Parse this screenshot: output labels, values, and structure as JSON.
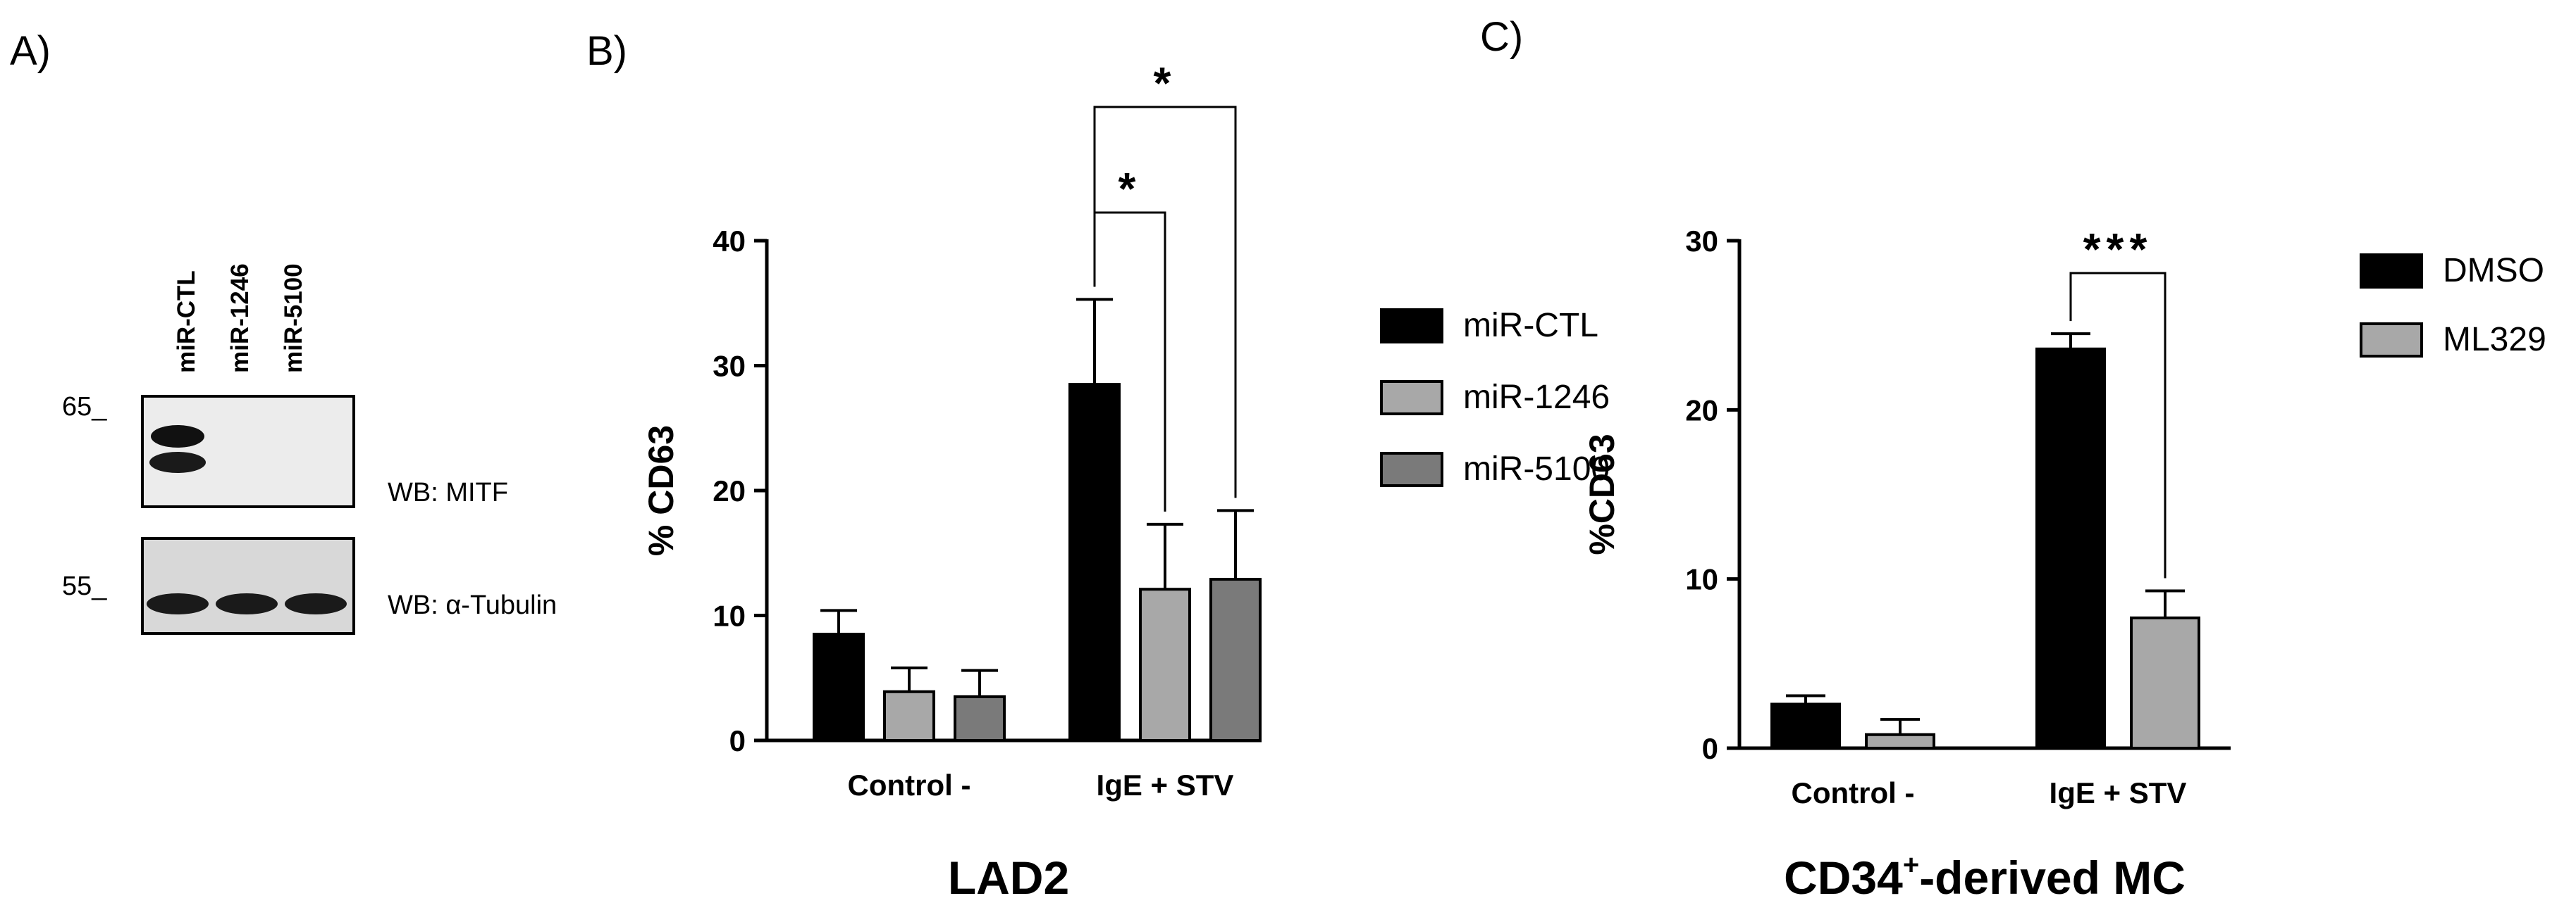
{
  "panels": {
    "a": {
      "label": "A)",
      "lanes": [
        "miR-CTL",
        "miR-1246",
        "miR-5100"
      ],
      "blots": [
        {
          "marker": "65_",
          "label": "WB: MITF"
        },
        {
          "marker": "55_",
          "label": "WB: α-Tubulin"
        }
      ]
    },
    "b": {
      "label": "B)",
      "footer": "LAD2"
    },
    "c": {
      "label": "C)",
      "footer_main": "CD34",
      "footer_sup": "+",
      "footer_rest": "-derived MC"
    }
  },
  "chart_data": [
    {
      "type": "bar",
      "categories": [
        "Control -",
        "IgE + STV"
      ],
      "ylabel": "% CD63",
      "ylim": [
        0,
        40
      ],
      "yticks": [
        "0",
        "10",
        "20",
        "30",
        "40"
      ],
      "legend_position": "right",
      "series": [
        {
          "name": "miR-CTL",
          "color": "#000000",
          "values": [
            8.5,
            28.5
          ],
          "errors": [
            1.9,
            6.8
          ]
        },
        {
          "name": "miR-1246",
          "color": "#a8a8a8",
          "values": [
            3.9,
            12.1
          ],
          "errors": [
            1.9,
            5.2
          ]
        },
        {
          "name": "miR-5100",
          "color": "#7a7a7a",
          "values": [
            3.5,
            12.9
          ],
          "errors": [
            2.1,
            5.5
          ]
        }
      ],
      "significance": [
        {
          "category": "IgE + STV",
          "from": "miR-CTL",
          "to": "miR-1246",
          "label": "*"
        },
        {
          "category": "IgE + STV",
          "from": "miR-CTL",
          "to": "miR-5100",
          "label": "*"
        }
      ]
    },
    {
      "type": "bar",
      "categories": [
        "Control -",
        "IgE + STV"
      ],
      "ylabel": "%CD63",
      "ylim": [
        0,
        30
      ],
      "yticks": [
        "0",
        "10",
        "20",
        "30"
      ],
      "legend_position": "right",
      "series": [
        {
          "name": "DMSO",
          "color": "#000000",
          "values": [
            2.6,
            23.6
          ],
          "errors": [
            0.5,
            0.9
          ]
        },
        {
          "name": "ML329",
          "color": "#a8a8a8",
          "values": [
            0.8,
            7.7
          ],
          "errors": [
            0.9,
            1.6
          ]
        }
      ],
      "significance": [
        {
          "category": "IgE + STV",
          "from": "DMSO",
          "to": "ML329",
          "label": "***"
        }
      ]
    }
  ]
}
